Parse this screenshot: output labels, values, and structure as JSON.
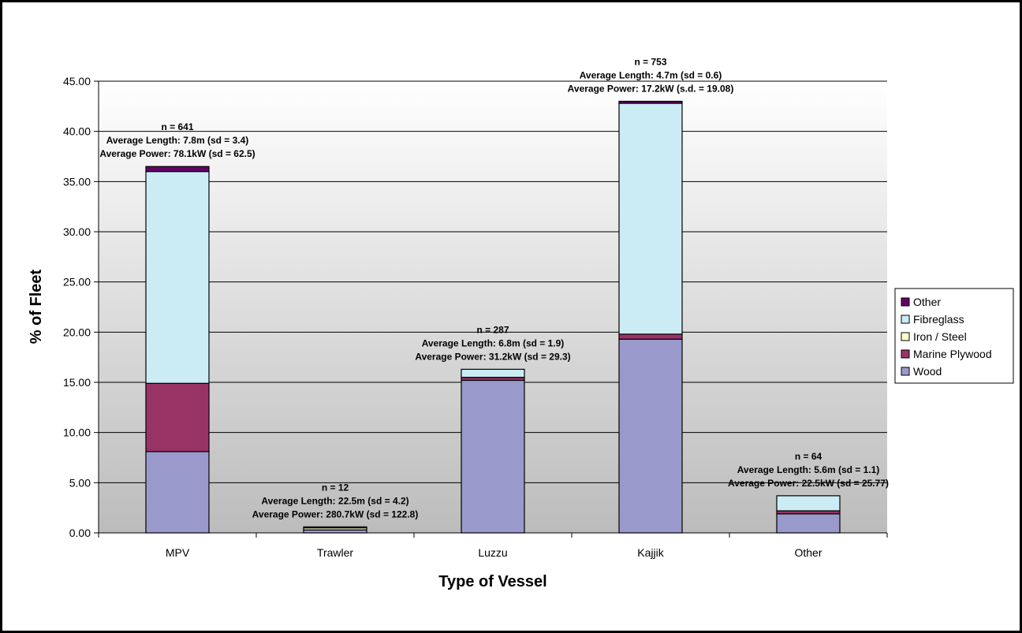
{
  "chart_data": {
    "type": "bar",
    "stacked": true,
    "title": "",
    "xlabel": "Type of Vessel",
    "ylabel": "% of Fleet",
    "ylim": [
      0,
      45
    ],
    "yticks": [
      "0.00",
      "5.00",
      "10.00",
      "15.00",
      "20.00",
      "25.00",
      "30.00",
      "35.00",
      "40.00",
      "45.00"
    ],
    "categories": [
      "MPV",
      "Trawler",
      "Luzzu",
      "Kajjik",
      "Other"
    ],
    "series": [
      {
        "name": "Wood",
        "color": "#9999cc",
        "values": [
          8.1,
          0.3,
          15.2,
          19.3,
          1.9
        ]
      },
      {
        "name": "Marine Plywood",
        "color": "#993366",
        "values": [
          6.8,
          0.0,
          0.3,
          0.5,
          0.3
        ]
      },
      {
        "name": "Iron / Steel",
        "color": "#ffffcc",
        "values": [
          0.0,
          0.2,
          0.0,
          0.0,
          0.0
        ]
      },
      {
        "name": "Fibreglass",
        "color": "#ccecf5",
        "values": [
          21.1,
          0.1,
          0.8,
          23.0,
          1.5
        ]
      },
      {
        "name": "Other",
        "color": "#660066",
        "values": [
          0.5,
          0.0,
          0.0,
          0.2,
          0.0
        ]
      }
    ],
    "legend_order": [
      "Other",
      "Fibreglass",
      "Iron / Steel",
      "Marine Plywood",
      "Wood"
    ],
    "legend_position": "right",
    "grid": true,
    "annotations": [
      [
        "n = 641",
        "Average Length:  7.8m (sd = 3.4)",
        "Average Power:   78.1kW (sd = 62.5)"
      ],
      [
        "n = 12",
        "Average Length:  22.5m (sd = 4.2)",
        "Average Power:   280.7kW (sd = 122.8)"
      ],
      [
        "n = 287",
        "Average Length:  6.8m (sd = 1.9)",
        "Average Power:   31.2kW (sd = 29.3)"
      ],
      [
        "n = 753",
        "Average Length:  4.7m (sd = 0.6)",
        "Average Power:   17.2kW (s.d. = 19.08)"
      ],
      [
        "n = 64",
        "Average Length: 5.6m (sd = 1.1)",
        "Average Power:   22.5kW (sd = 25.77)"
      ]
    ]
  }
}
